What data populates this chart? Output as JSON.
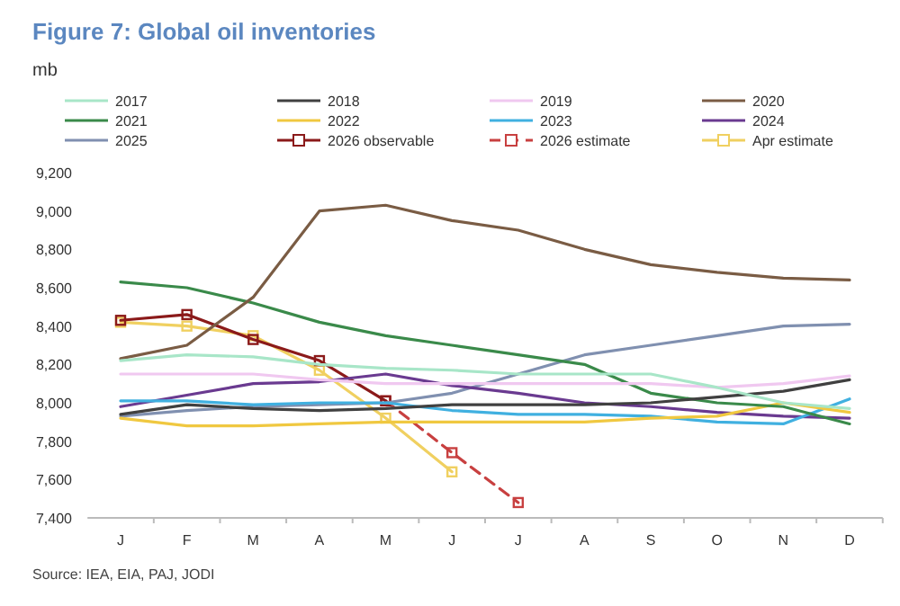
{
  "chart_data": {
    "type": "line",
    "title": "Figure 7: Global oil inventories",
    "ylabel": "mb",
    "categories": [
      "J",
      "F",
      "M",
      "A",
      "M",
      "J",
      "J",
      "A",
      "S",
      "O",
      "N",
      "D"
    ],
    "ylim": [
      7400,
      9200
    ],
    "yticks": [
      {
        "value": 7400,
        "label": "7,400"
      },
      {
        "value": 7600,
        "label": "7,600"
      },
      {
        "value": 7800,
        "label": "7,800"
      },
      {
        "value": 8000,
        "label": "8,000"
      },
      {
        "value": 8200,
        "label": "8,200"
      },
      {
        "value": 8400,
        "label": "8,400"
      },
      {
        "value": 8600,
        "label": "8,600"
      },
      {
        "value": 8800,
        "label": "8,800"
      },
      {
        "value": 9000,
        "label": "9,000"
      },
      {
        "value": 9200,
        "label": "9,200"
      }
    ],
    "legend": "top",
    "marker": "none",
    "line_style": "solid",
    "annotations": [
      "Source: IEA, EIA, PAJ, JODI"
    ],
    "series": [
      {
        "name": "2017",
        "color": "#a8e6c8",
        "values": [
          8220,
          8250,
          8240,
          8200,
          8180,
          8170,
          8150,
          8150,
          8150,
          8080,
          8000,
          7970
        ]
      },
      {
        "name": "2018",
        "color": "#404040",
        "values": [
          7940,
          7990,
          7970,
          7960,
          7970,
          7990,
          7990,
          7990,
          8000,
          8030,
          8060,
          8120
        ]
      },
      {
        "name": "2019",
        "color": "#f0c8f0",
        "values": [
          8150,
          8150,
          8150,
          8120,
          8100,
          8100,
          8100,
          8100,
          8100,
          8080,
          8100,
          8140
        ]
      },
      {
        "name": "2020",
        "color": "#7a5c44",
        "values": [
          8230,
          8300,
          8550,
          9000,
          9030,
          8950,
          8900,
          8800,
          8720,
          8680,
          8650,
          8640
        ]
      },
      {
        "name": "2021",
        "color": "#3a8a4a",
        "values": [
          8630,
          8600,
          8520,
          8420,
          8350,
          8300,
          8250,
          8200,
          8050,
          8000,
          7980,
          7890
        ]
      },
      {
        "name": "2022",
        "color": "#f0c840",
        "values": [
          7920,
          7880,
          7880,
          7890,
          7900,
          7900,
          7900,
          7900,
          7920,
          7930,
          8000,
          7950
        ]
      },
      {
        "name": "2023",
        "color": "#40b0e0",
        "values": [
          8010,
          8010,
          7990,
          8000,
          8000,
          7960,
          7940,
          7940,
          7930,
          7900,
          7890,
          8020
        ]
      },
      {
        "name": "2024",
        "color": "#6a3a90",
        "values": [
          7980,
          8040,
          8100,
          8110,
          8150,
          8090,
          8050,
          8000,
          7980,
          7950,
          7930,
          7920
        ]
      },
      {
        "name": "2025",
        "color": "#8090b0",
        "values": [
          7930,
          7960,
          7980,
          7990,
          8000,
          8050,
          8150,
          8250,
          8300,
          8350,
          8400,
          8410
        ]
      },
      {
        "name": "2026 observable",
        "color": "#8b1a1a",
        "marker": "square",
        "values": [
          8430,
          8460,
          8330,
          8220,
          8010,
          null,
          null,
          null,
          null,
          null,
          null,
          null
        ]
      },
      {
        "name": "2026 estimate",
        "color": "#c84040",
        "marker": "square",
        "line_style": "dashed",
        "values": [
          null,
          null,
          null,
          null,
          8010,
          7740,
          7480,
          null,
          null,
          null,
          null,
          null
        ]
      },
      {
        "name": "Apr estimate",
        "color": "#f0d060",
        "marker": "square",
        "values": [
          8420,
          8400,
          8350,
          8170,
          7920,
          7640,
          null,
          null,
          null,
          null,
          null,
          null
        ]
      }
    ]
  }
}
